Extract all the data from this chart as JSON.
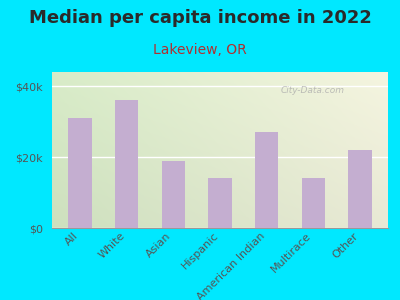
{
  "title": "Median per capita income in 2022",
  "subtitle": "Lakeview, OR",
  "categories": [
    "All",
    "White",
    "Asian",
    "Hispanic",
    "American Indian",
    "Multirace",
    "Other"
  ],
  "values": [
    31000,
    36000,
    19000,
    14000,
    27000,
    14000,
    22000
  ],
  "bar_color": "#c4aed0",
  "background_outer": "#00e8ff",
  "background_inner_topleft": "#e8f0d8",
  "background_inner_topright": "#f0f0e8",
  "title_color": "#2a2a2a",
  "subtitle_color": "#b03030",
  "tick_color": "#555555",
  "ylabel_ticks": [
    "$0",
    "$20k",
    "$40k"
  ],
  "ytick_values": [
    0,
    20000,
    40000
  ],
  "ylim": [
    0,
    44000
  ],
  "watermark": "City-Data.com",
  "title_fontsize": 13,
  "subtitle_fontsize": 10,
  "tick_fontsize": 8
}
